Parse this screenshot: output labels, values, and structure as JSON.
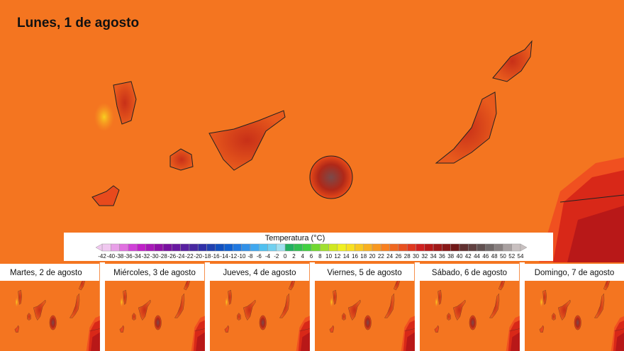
{
  "title": "Lunes, 1 de agosto",
  "colorbar": {
    "title": "Temperatura (°C)",
    "ticks": [
      -42,
      -40,
      -38,
      -36,
      -34,
      -32,
      -30,
      -28,
      -26,
      -24,
      -22,
      -20,
      -18,
      -16,
      -14,
      -12,
      -10,
      -8,
      -6,
      -4,
      -2,
      0,
      2,
      4,
      6,
      8,
      10,
      12,
      14,
      16,
      18,
      20,
      22,
      24,
      26,
      28,
      30,
      32,
      34,
      36,
      38,
      40,
      42,
      44,
      46,
      48,
      50,
      52,
      54
    ],
    "colors": [
      "#f0c8f0",
      "#e8a0e8",
      "#e070e0",
      "#d040d8",
      "#c020c8",
      "#a818b8",
      "#9010a8",
      "#7810a0",
      "#6818a0",
      "#5820a0",
      "#4828a0",
      "#3030a8",
      "#2040b0",
      "#1050c0",
      "#1060d0",
      "#2078e0",
      "#3090e8",
      "#40a8f0",
      "#50c0f0",
      "#70d0f0",
      "#a0e0f0",
      "#20b060",
      "#30c050",
      "#40d040",
      "#70d830",
      "#a0e030",
      "#d0e820",
      "#f0f020",
      "#f8e020",
      "#f8c820",
      "#f8b020",
      "#f89820",
      "#f88020",
      "#f06820",
      "#e85020",
      "#e03820",
      "#d02020",
      "#b81818",
      "#a01818",
      "#881818",
      "#701818",
      "#603030",
      "#604040",
      "#605050",
      "#706868",
      "#888080",
      "#a8a0a0",
      "#c8c0c0"
    ]
  },
  "panels": [
    {
      "title": "Martes, 2 de agosto"
    },
    {
      "title": "Miércoles, 3 de agosto"
    },
    {
      "title": "Jueves, 4 de agosto"
    },
    {
      "title": "Viernes, 5 de agosto"
    },
    {
      "title": "Sábado, 6 de agosto"
    },
    {
      "title": "Domingo, 7 de agosto"
    }
  ]
}
